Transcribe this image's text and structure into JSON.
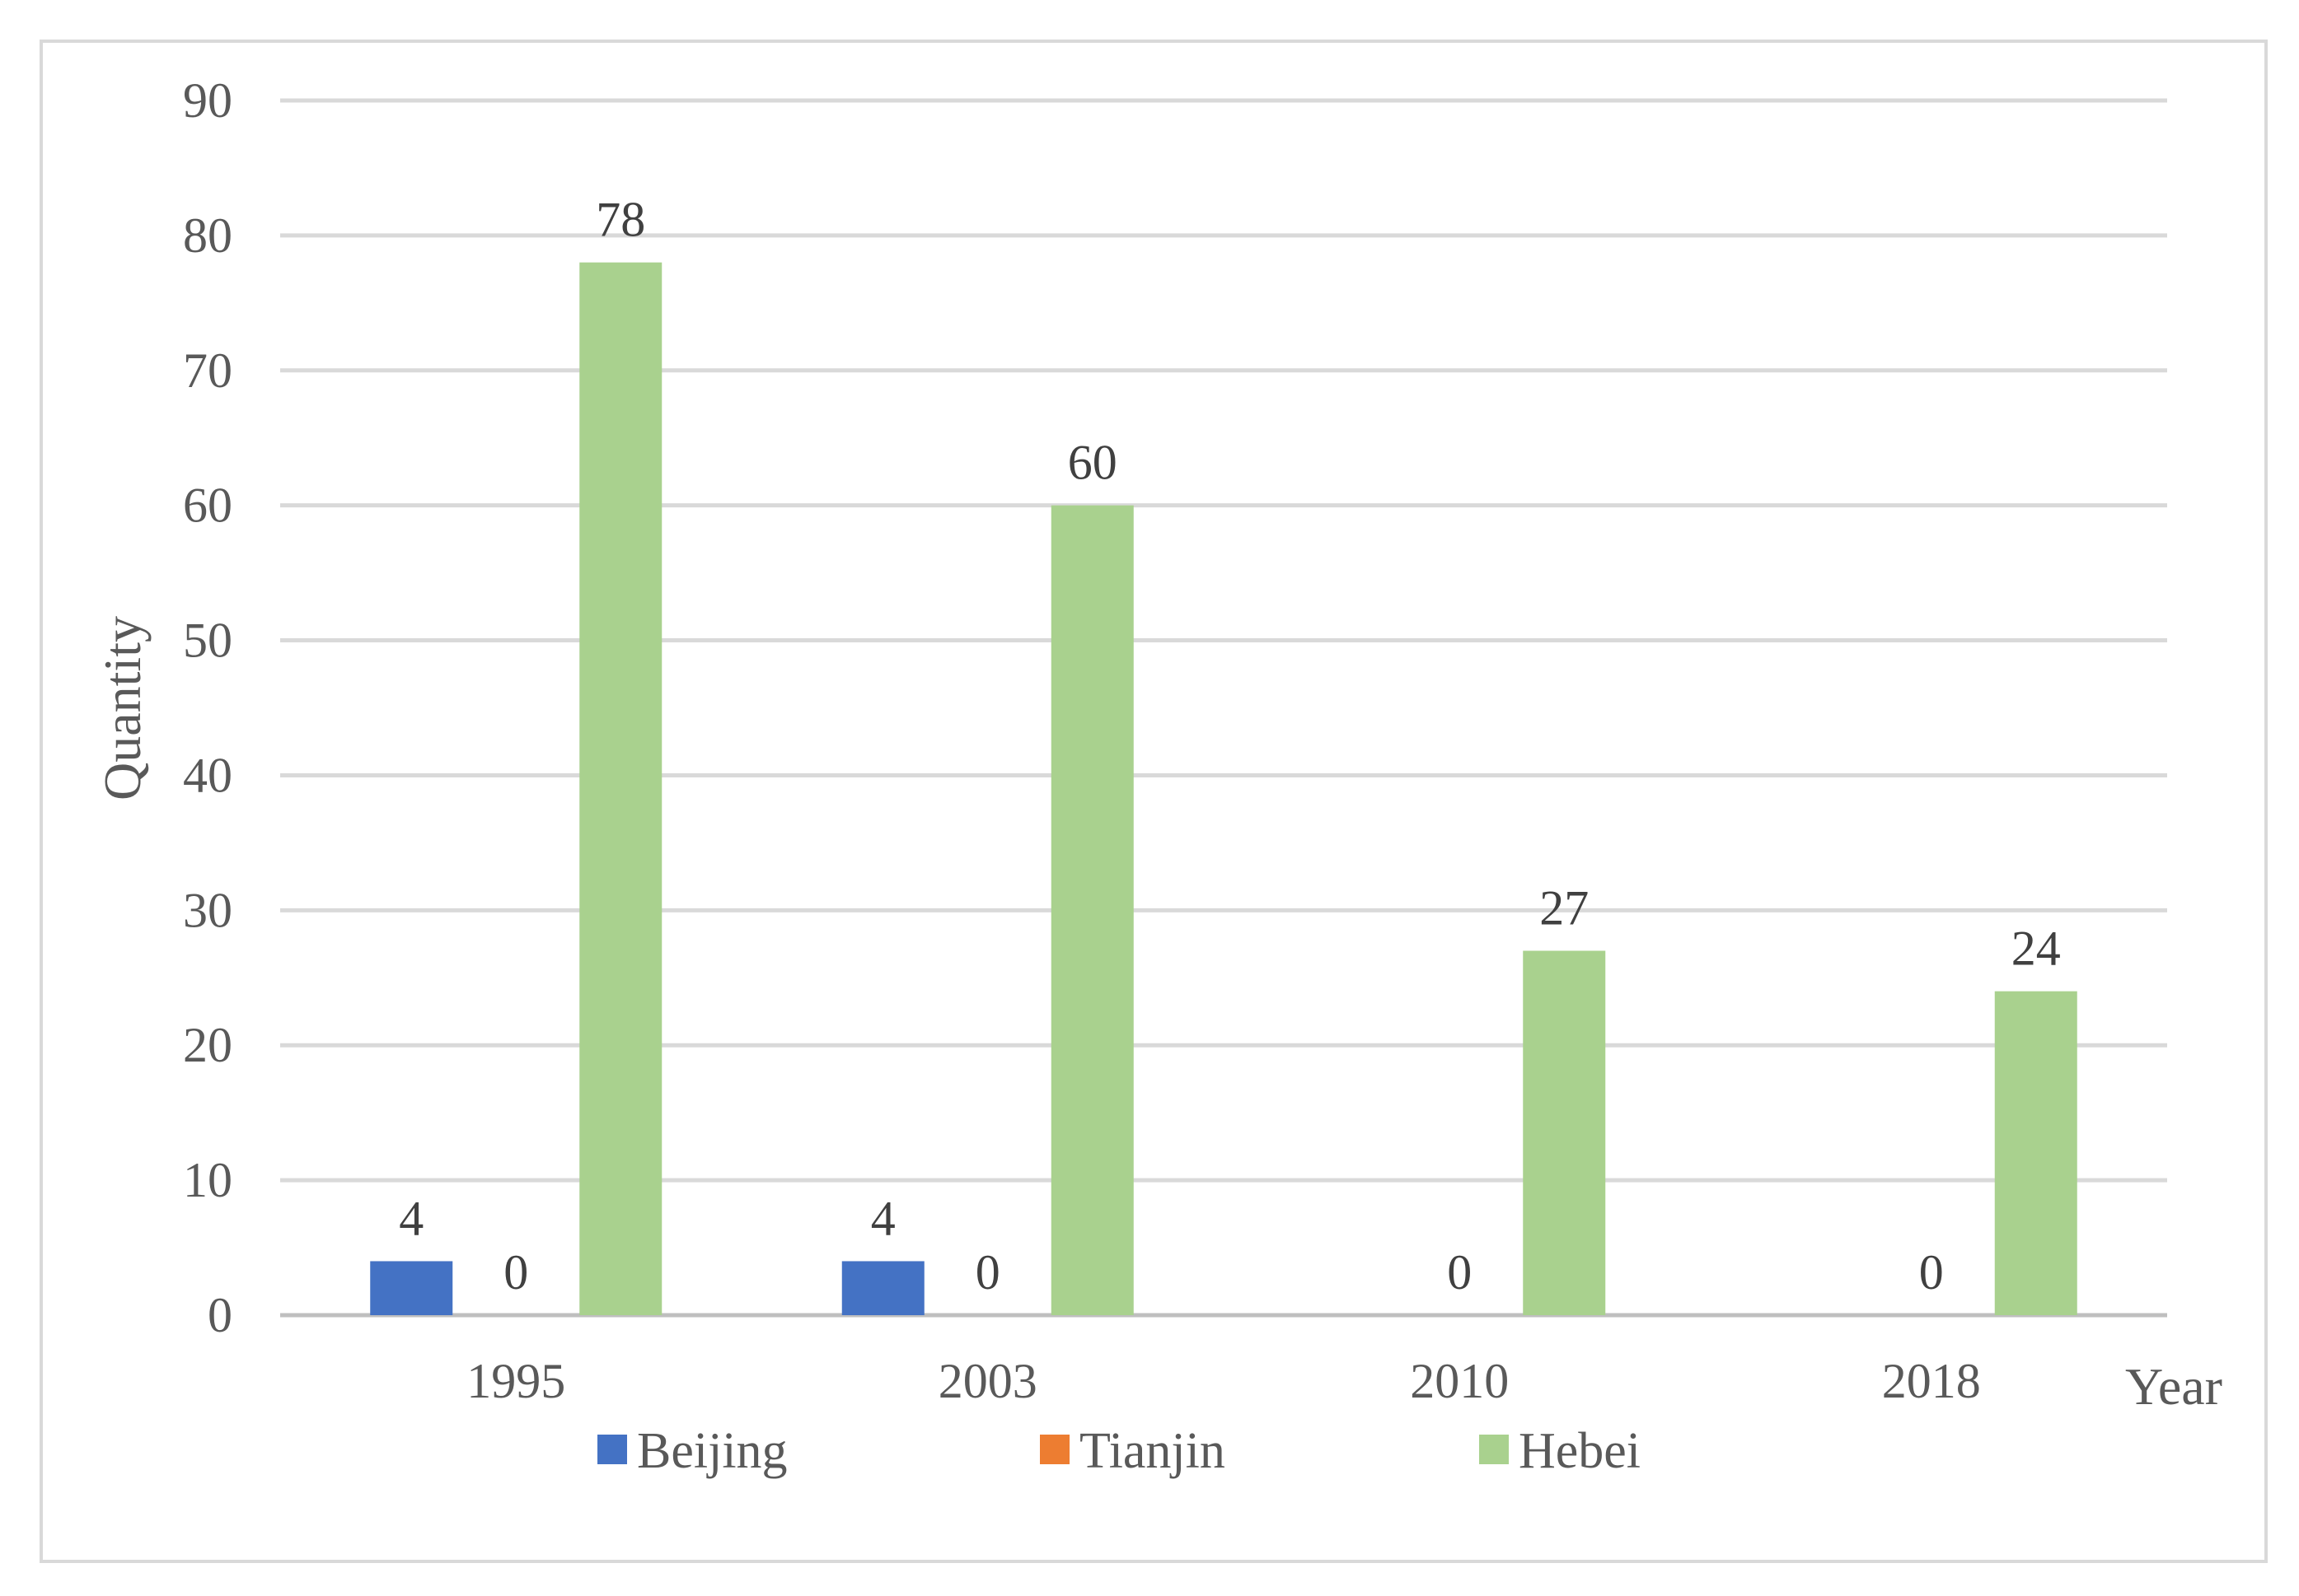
{
  "chart_data": {
    "type": "bar",
    "categories": [
      "1995",
      "2003",
      "2010",
      "2018"
    ],
    "series": [
      {
        "name": "Beijing",
        "color": "#4472c4",
        "values": [
          4,
          4,
          0,
          0
        ]
      },
      {
        "name": "Tianjin",
        "color": "#ed7d31",
        "values": [
          0,
          0,
          0,
          0
        ]
      },
      {
        "name": "Hebei",
        "color": "#a9d18e",
        "values": [
          78,
          60,
          27,
          24
        ]
      }
    ],
    "data_labels": [
      [
        "4",
        "4",
        "",
        ""
      ],
      [
        "0",
        "0",
        "0",
        "0"
      ],
      [
        "78",
        "60",
        "27",
        "24"
      ]
    ],
    "y_ticks": [
      "0",
      "10",
      "20",
      "30",
      "40",
      "50",
      "60",
      "70",
      "80",
      "90"
    ],
    "ylim": [
      0,
      90
    ],
    "xlabel": "Year",
    "ylabel": "Quantity",
    "grid": true,
    "legend_position": "bottom"
  }
}
